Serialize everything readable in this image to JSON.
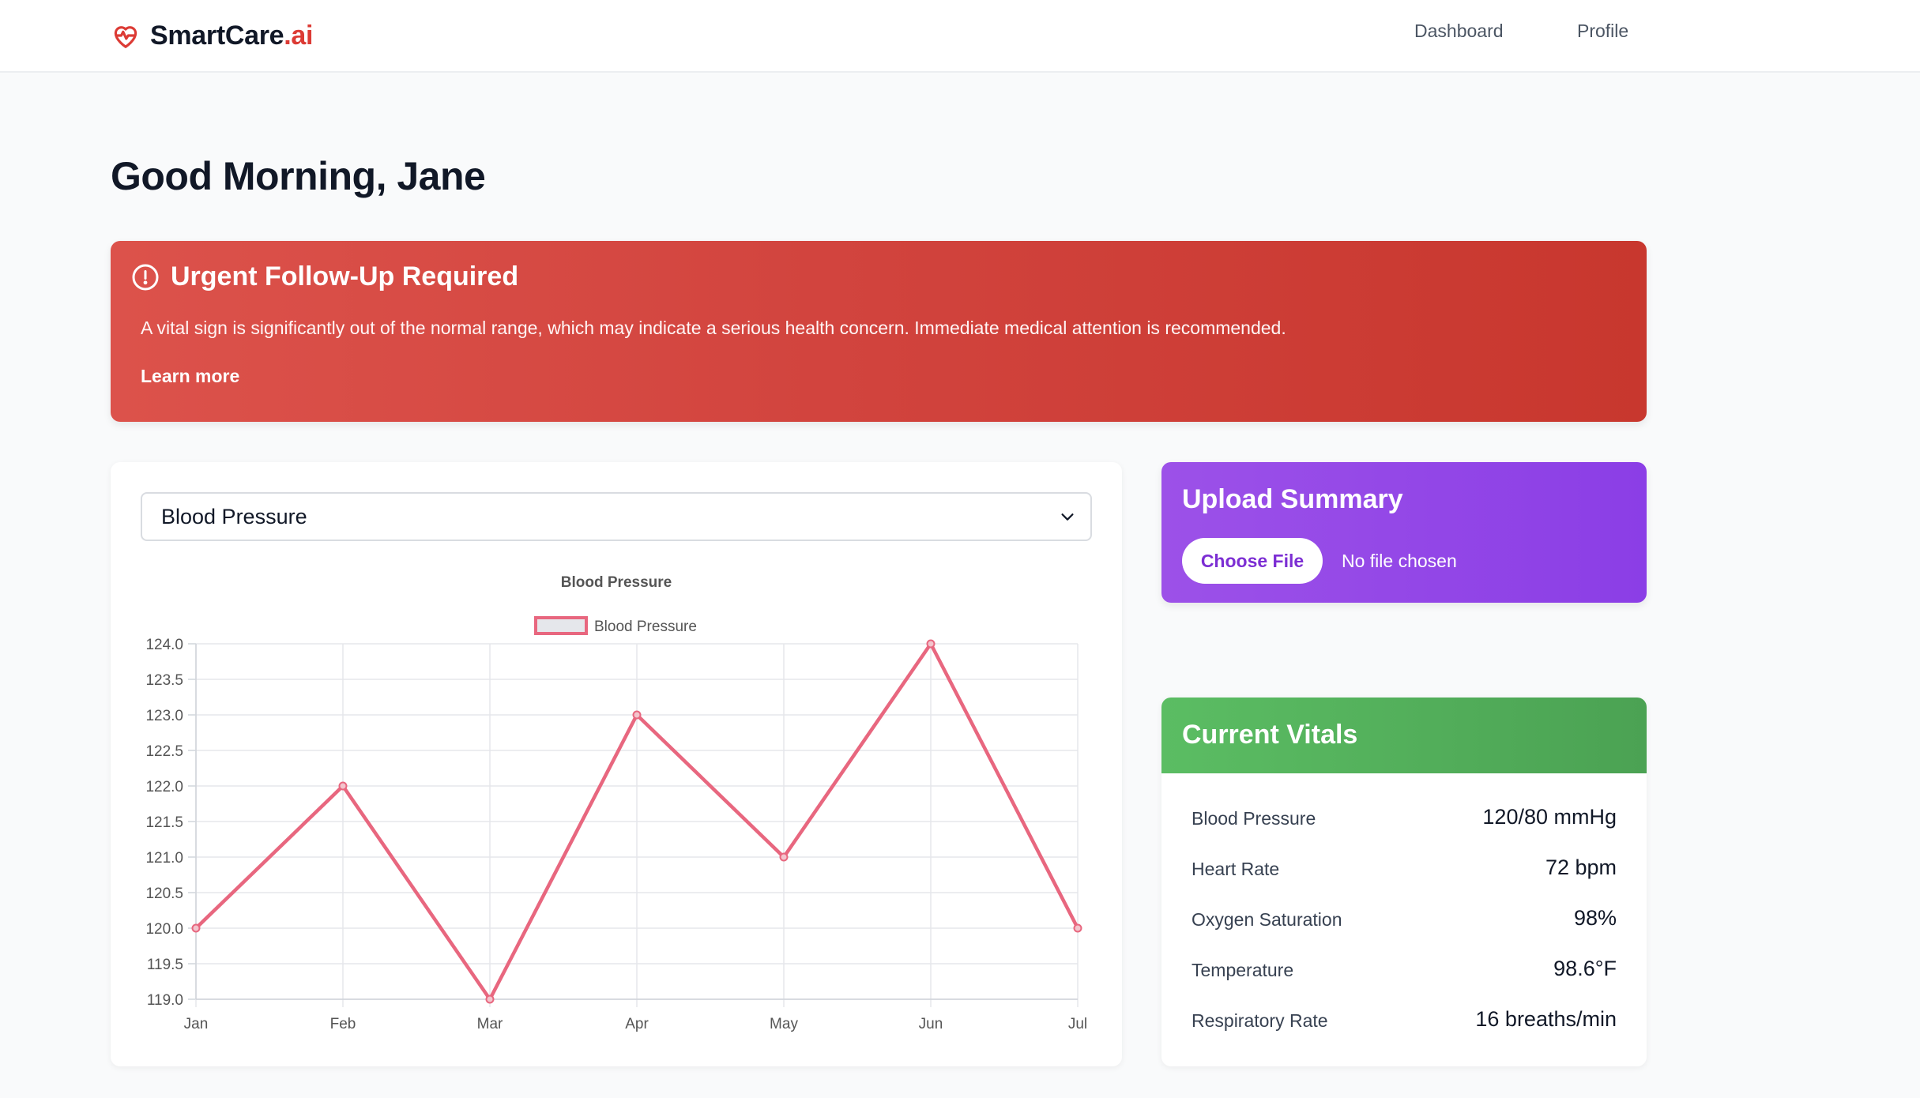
{
  "brand": {
    "name": "SmartCare",
    "suffix": ".ai",
    "icon": "heart-pulse-icon",
    "color": "#dc3b35"
  },
  "nav": {
    "dashboard": "Dashboard",
    "profile": "Profile"
  },
  "greeting": "Good Morning, Jane",
  "alert": {
    "icon": "alert-circle-icon",
    "title": "Urgent Follow-Up Required",
    "body": "A vital sign is significantly out of the normal range, which may indicate a serious health concern. Immediate medical attention is recommended.",
    "link": "Learn more",
    "color": "#d1433d"
  },
  "metric_select": {
    "selected": "Blood Pressure"
  },
  "upload": {
    "title": "Upload Summary",
    "button": "Choose File",
    "status": "No file chosen",
    "color": "#8b3ee6"
  },
  "vitals": {
    "title": "Current Vitals",
    "color": "#55b05c",
    "rows": [
      {
        "label": "Blood Pressure",
        "value": "120/80 mmHg"
      },
      {
        "label": "Heart Rate",
        "value": "72 bpm"
      },
      {
        "label": "Oxygen Saturation",
        "value": "98%"
      },
      {
        "label": "Temperature",
        "value": "98.6°F"
      },
      {
        "label": "Respiratory Rate",
        "value": "16 breaths/min"
      }
    ]
  },
  "chart_data": {
    "type": "line",
    "title": "Blood Pressure",
    "categories": [
      "Jan",
      "Feb",
      "Mar",
      "Apr",
      "May",
      "Jun",
      "Jul"
    ],
    "series": [
      {
        "name": "Blood Pressure",
        "values": [
          120,
          122,
          119,
          123,
          121,
          124,
          120
        ],
        "color": "#e8677f"
      }
    ],
    "ylim": [
      119,
      124
    ],
    "yticks": [
      "124.0",
      "123.5",
      "123.0",
      "122.5",
      "122.0",
      "121.5",
      "121.0",
      "120.5",
      "120.0",
      "119.5",
      "119.0"
    ],
    "grid": true,
    "legend": "top-center"
  }
}
